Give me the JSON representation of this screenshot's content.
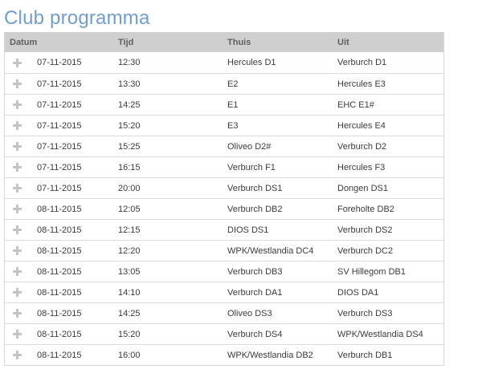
{
  "page": {
    "title": "Club programma"
  },
  "table": {
    "headers": {
      "date": "Datum",
      "time": "Tijd",
      "home": "Thuis",
      "away": "Uit"
    },
    "rows": [
      {
        "date": "07-11-2015",
        "time": "12:30",
        "home": "Hercules D1",
        "away": "Verburch D1"
      },
      {
        "date": "07-11-2015",
        "time": "13:30",
        "home": "E2",
        "away": "Hercules E3"
      },
      {
        "date": "07-11-2015",
        "time": "14:25",
        "home": "E1",
        "away": "EHC E1#"
      },
      {
        "date": "07-11-2015",
        "time": "15:20",
        "home": "E3",
        "away": "Hercules E4"
      },
      {
        "date": "07-11-2015",
        "time": "15:25",
        "home": "Oliveo D2#",
        "away": "Verburch D2"
      },
      {
        "date": "07-11-2015",
        "time": "16:15",
        "home": "Verburch F1",
        "away": "Hercules F3"
      },
      {
        "date": "07-11-2015",
        "time": "20:00",
        "home": "Verburch DS1",
        "away": "Dongen DS1"
      },
      {
        "date": "08-11-2015",
        "time": "12:05",
        "home": "Verburch DB2",
        "away": "Foreholte DB2"
      },
      {
        "date": "08-11-2015",
        "time": "12:15",
        "home": "DIOS DS1",
        "away": "Verburch DS2"
      },
      {
        "date": "08-11-2015",
        "time": "12:20",
        "home": "WPK/Westlandia DC4",
        "away": "Verburch DC2"
      },
      {
        "date": "08-11-2015",
        "time": "13:05",
        "home": "Verburch DB3",
        "away": "SV Hillegom DB1"
      },
      {
        "date": "08-11-2015",
        "time": "14:10",
        "home": "Verburch DA1",
        "away": "DIOS DA1"
      },
      {
        "date": "08-11-2015",
        "time": "14:25",
        "home": "Oliveo DS3",
        "away": "Verburch DS3"
      },
      {
        "date": "08-11-2015",
        "time": "15:20",
        "home": "Verburch DS4",
        "away": "WPK/Westlandia DS4"
      },
      {
        "date": "08-11-2015",
        "time": "16:00",
        "home": "WPK/Westlandia DB2",
        "away": "Verburch DB1"
      }
    ]
  },
  "icons": {
    "row_expand": "plus-icon"
  }
}
